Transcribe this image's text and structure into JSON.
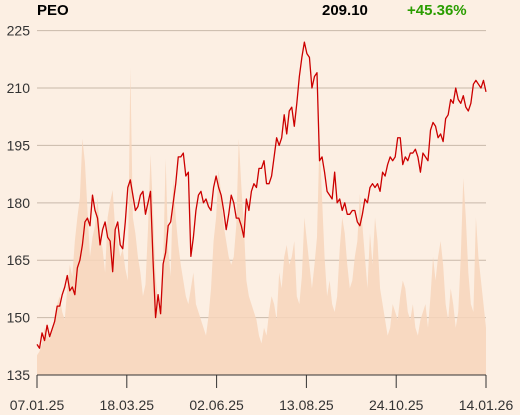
{
  "header": {
    "ticker": "PEO",
    "price": "209.10",
    "change": "+45.36%"
  },
  "colors": {
    "background": "#fcefe3",
    "line": "#cc0000",
    "volume": "#f7d5bb",
    "change_positive": "#2a9d00",
    "grid": "#c9b9aa"
  },
  "chart_data": {
    "type": "line",
    "title": "",
    "xlabel": "",
    "ylabel": "",
    "ylim": [
      135,
      230
    ],
    "yticks": [
      135,
      150,
      165,
      180,
      195,
      210,
      225
    ],
    "xtick_labels": [
      "07.01.25",
      "18.03.25",
      "02.06.25",
      "13.08.25",
      "24.10.25",
      "14.01.26"
    ],
    "grid": "horizontal",
    "series": [
      {
        "values": [
          143,
          142,
          146,
          144,
          148,
          145,
          147,
          149,
          153,
          153,
          156,
          158,
          161,
          157,
          158,
          156,
          163,
          165,
          169,
          175,
          176,
          174,
          182,
          178,
          176,
          169,
          173,
          175,
          171,
          170,
          162,
          173,
          175,
          169,
          168,
          175,
          184,
          186,
          182,
          178,
          179,
          182,
          183,
          177,
          180,
          183,
          165,
          150,
          156,
          151,
          164,
          167,
          174,
          175,
          180,
          185,
          192,
          192,
          193,
          187,
          188,
          166,
          171,
          178,
          182,
          183,
          180,
          181,
          179,
          178,
          184,
          187,
          184,
          182,
          178,
          173,
          177,
          182,
          180,
          176,
          176,
          174,
          171,
          181,
          178,
          183,
          185,
          184,
          189,
          189,
          191,
          185,
          185,
          187,
          192,
          197,
          195,
          197,
          203,
          198,
          204,
          205,
          200,
          206,
          213,
          218,
          222,
          219,
          218,
          210,
          213,
          214,
          191,
          192,
          188,
          183,
          182,
          181,
          188,
          180,
          181,
          178,
          180,
          177,
          177,
          178,
          178,
          175,
          174,
          177,
          181,
          180,
          184,
          185,
          184,
          185,
          183,
          188,
          187,
          190,
          192,
          191,
          192,
          197,
          197,
          190,
          192,
          191,
          193,
          193,
          194,
          192,
          188,
          193,
          192,
          191,
          199,
          201,
          200,
          197,
          198,
          196,
          202,
          203,
          207,
          206,
          210,
          207,
          206,
          208,
          205,
          204,
          206,
          211,
          212,
          211,
          210,
          212,
          209
        ]
      }
    ],
    "volume": [
      5,
      6,
      8,
      12,
      10,
      9,
      11,
      15,
      18,
      20,
      16,
      14,
      22,
      28,
      25,
      34,
      40,
      45,
      60,
      54,
      42,
      30,
      35,
      38,
      45,
      36,
      32,
      26,
      40,
      44,
      47,
      37,
      34,
      30,
      32,
      27,
      24,
      78,
      40,
      36,
      30,
      26,
      20,
      23,
      37,
      56,
      42,
      25,
      18,
      15,
      28,
      55,
      32,
      25,
      50,
      40,
      33,
      28,
      24,
      20,
      18,
      22,
      26,
      18,
      16,
      14,
      12,
      10,
      15,
      22,
      34,
      40,
      52,
      46,
      38,
      34,
      30,
      28,
      30,
      38,
      60,
      48,
      38,
      24,
      20,
      18,
      16,
      14,
      10,
      8,
      12,
      10,
      16,
      20,
      18,
      14,
      26,
      22,
      30,
      33,
      28,
      30,
      34,
      20,
      18,
      25,
      40,
      34,
      28,
      22,
      28,
      35,
      60,
      45,
      30,
      20,
      24,
      18,
      16,
      20,
      32,
      40,
      36,
      28,
      22,
      24,
      30,
      34,
      46,
      38,
      30,
      22,
      36,
      28,
      40,
      34,
      22,
      18,
      14,
      10,
      12,
      18,
      16,
      14,
      20,
      24,
      22,
      16,
      14,
      18,
      12,
      10,
      14,
      16,
      18,
      12,
      20,
      30,
      24,
      30,
      34,
      28,
      18,
      14,
      22,
      18,
      12,
      16,
      30,
      50,
      40,
      26,
      18,
      16,
      40,
      30,
      24,
      18,
      12
    ]
  }
}
